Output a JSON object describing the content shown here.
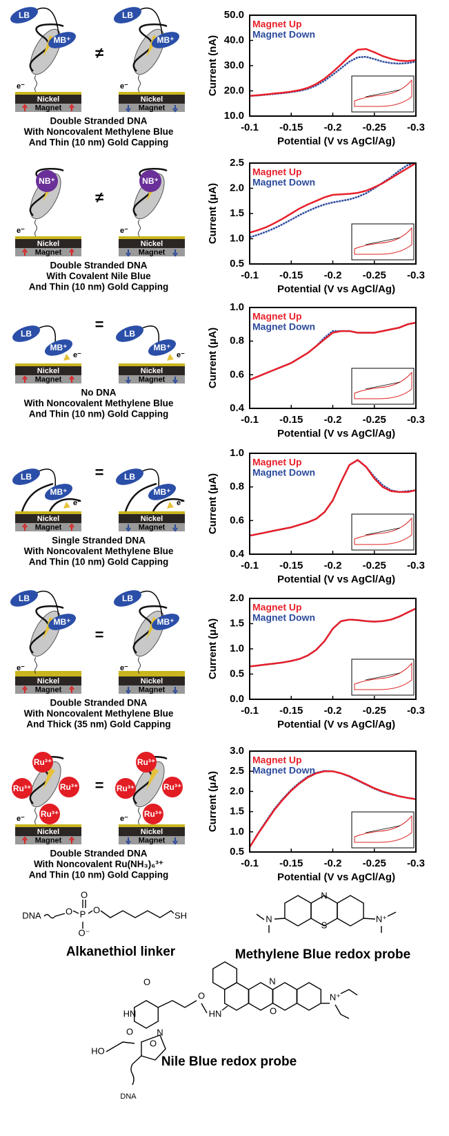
{
  "chart_data": [
    {
      "type": "line",
      "y_label": "Current (nA)",
      "x_label": "Potential (V vs AgCl/Ag)",
      "x": [
        -0.1,
        -0.11,
        -0.12,
        -0.13,
        -0.14,
        -0.15,
        -0.16,
        -0.17,
        -0.18,
        -0.19,
        -0.2,
        -0.21,
        -0.22,
        -0.23,
        -0.24,
        -0.25,
        -0.26,
        -0.27,
        -0.28,
        -0.29,
        -0.3
      ],
      "xlim": [
        -0.1,
        -0.3
      ],
      "xticks": [
        -0.1,
        -0.15,
        -0.2,
        -0.25,
        -0.3
      ],
      "ylim": [
        10,
        50
      ],
      "yticks": [
        {
          "value": 10,
          "label": "10.0"
        },
        {
          "value": 20,
          "label": "20.0"
        },
        {
          "value": 30,
          "label": "30.0"
        },
        {
          "value": 40,
          "label": "40.0"
        },
        {
          "value": 50,
          "label": "50.0"
        }
      ],
      "legend": "upper left",
      "series": [
        {
          "name": "Magnet Up",
          "color": "#e8202a",
          "values": [
            18,
            18.3,
            18.6,
            19,
            19.3,
            19.7,
            20.3,
            21.2,
            22.7,
            24.8,
            27.5,
            30.5,
            33.7,
            36.3,
            36.6,
            35.3,
            33.8,
            32.7,
            32,
            31.8,
            32.2
          ]
        },
        {
          "name": "Magnet Down",
          "color": "#2b4a9c",
          "values": [
            18,
            18.2,
            18.5,
            18.8,
            19.1,
            19.5,
            20,
            20.8,
            22.1,
            24,
            26.4,
            29,
            31.6,
            33.3,
            33.5,
            32.6,
            31.6,
            31,
            30.8,
            31,
            31.6
          ]
        }
      ]
    },
    {
      "type": "line",
      "y_label": "Current (μA)",
      "x_label": "Potential (V vs AgCl/Ag)",
      "x": [
        -0.1,
        -0.11,
        -0.12,
        -0.13,
        -0.14,
        -0.15,
        -0.16,
        -0.17,
        -0.18,
        -0.19,
        -0.2,
        -0.21,
        -0.22,
        -0.23,
        -0.24,
        -0.25,
        -0.26,
        -0.27,
        -0.28,
        -0.29,
        -0.3
      ],
      "xlim": [
        -0.1,
        -0.3
      ],
      "xticks": [
        -0.1,
        -0.15,
        -0.2,
        -0.25,
        -0.3
      ],
      "ylim": [
        0.5,
        2.5
      ],
      "yticks": [
        0.5,
        {
          "value": 1,
          "label": "1.0"
        },
        1.5,
        {
          "value": 2,
          "label": "2.0"
        },
        2.5
      ],
      "legend": "upper left",
      "series": [
        {
          "name": "Magnet Up",
          "color": "#e8202a",
          "values": [
            1.12,
            1.17,
            1.23,
            1.31,
            1.4,
            1.5,
            1.6,
            1.68,
            1.75,
            1.82,
            1.87,
            1.88,
            1.89,
            1.91,
            1.95,
            2.02,
            2.1,
            2.2,
            2.3,
            2.4,
            2.5
          ]
        },
        {
          "name": "Magnet Down",
          "color": "#2b4a9c",
          "values": [
            1.03,
            1.08,
            1.14,
            1.21,
            1.29,
            1.38,
            1.47,
            1.55,
            1.62,
            1.68,
            1.72,
            1.75,
            1.78,
            1.83,
            1.9,
            2,
            2.11,
            2.22,
            2.35,
            2.46,
            2.5
          ]
        }
      ]
    },
    {
      "type": "line",
      "y_label": "Current (μA)",
      "x_label": "Potential (V vs AgCl/Ag)",
      "x": [
        -0.1,
        -0.11,
        -0.12,
        -0.13,
        -0.14,
        -0.15,
        -0.16,
        -0.17,
        -0.18,
        -0.19,
        -0.2,
        -0.21,
        -0.22,
        -0.23,
        -0.24,
        -0.25,
        -0.26,
        -0.27,
        -0.28,
        -0.29,
        -0.3
      ],
      "xlim": [
        -0.1,
        -0.3
      ],
      "xticks": [
        -0.1,
        -0.15,
        -0.2,
        -0.25,
        -0.3
      ],
      "ylim": [
        0.4,
        1
      ],
      "yticks": [
        0.4,
        0.6,
        0.8,
        {
          "value": 1,
          "label": "1.0"
        }
      ],
      "legend": "upper left",
      "series": [
        {
          "name": "Magnet Up",
          "color": "#e8202a",
          "values": [
            0.57,
            0.59,
            0.61,
            0.63,
            0.65,
            0.67,
            0.7,
            0.73,
            0.77,
            0.81,
            0.85,
            0.86,
            0.86,
            0.85,
            0.85,
            0.85,
            0.86,
            0.87,
            0.88,
            0.9,
            0.91
          ]
        },
        {
          "name": "Magnet Down",
          "color": "#2b4a9c",
          "values": [
            0.57,
            0.59,
            0.61,
            0.63,
            0.65,
            0.67,
            0.7,
            0.73,
            0.77,
            0.82,
            0.86,
            0.86,
            0.86,
            0.85,
            0.85,
            0.85,
            0.86,
            0.87,
            0.88,
            0.9,
            0.91
          ]
        }
      ]
    },
    {
      "type": "line",
      "y_label": "Current (μA)",
      "x_label": "Potential (V vs AgCl/Ag)",
      "x": [
        -0.1,
        -0.11,
        -0.12,
        -0.13,
        -0.14,
        -0.15,
        -0.16,
        -0.17,
        -0.18,
        -0.19,
        -0.2,
        -0.21,
        -0.22,
        -0.23,
        -0.24,
        -0.25,
        -0.26,
        -0.27,
        -0.28,
        -0.29,
        -0.3
      ],
      "xlim": [
        -0.1,
        -0.3
      ],
      "xticks": [
        -0.1,
        -0.15,
        -0.2,
        -0.25,
        -0.3
      ],
      "ylim": [
        0.4,
        1
      ],
      "yticks": [
        0.4,
        0.6,
        0.8,
        {
          "value": 1,
          "label": "1.0"
        }
      ],
      "legend": "upper left",
      "series": [
        {
          "name": "Magnet Up",
          "color": "#e8202a",
          "values": [
            0.51,
            0.52,
            0.53,
            0.54,
            0.55,
            0.56,
            0.575,
            0.59,
            0.61,
            0.65,
            0.72,
            0.83,
            0.93,
            0.96,
            0.92,
            0.85,
            0.8,
            0.775,
            0.77,
            0.77,
            0.78
          ]
        },
        {
          "name": "Magnet Down",
          "color": "#2b4a9c",
          "values": [
            0.51,
            0.52,
            0.53,
            0.54,
            0.55,
            0.56,
            0.575,
            0.59,
            0.61,
            0.65,
            0.72,
            0.83,
            0.93,
            0.96,
            0.92,
            0.86,
            0.81,
            0.78,
            0.77,
            0.775,
            0.78
          ]
        }
      ]
    },
    {
      "type": "line",
      "y_label": "Current (μA)",
      "x_label": "Potential (V vs AgCl/Ag)",
      "x": [
        -0.1,
        -0.11,
        -0.12,
        -0.13,
        -0.14,
        -0.15,
        -0.16,
        -0.17,
        -0.18,
        -0.19,
        -0.2,
        -0.21,
        -0.22,
        -0.23,
        -0.24,
        -0.25,
        -0.26,
        -0.27,
        -0.28,
        -0.29,
        -0.3
      ],
      "xlim": [
        -0.1,
        -0.3
      ],
      "xticks": [
        -0.1,
        -0.15,
        -0.2,
        -0.25,
        -0.3
      ],
      "ylim": [
        0,
        2
      ],
      "yticks": [
        {
          "value": 0,
          "label": "0.0"
        },
        0.5,
        {
          "value": 1,
          "label": "1.0"
        },
        1.5,
        {
          "value": 2,
          "label": "2.0"
        }
      ],
      "legend": "upper left",
      "series": [
        {
          "name": "Magnet Up",
          "color": "#e8202a",
          "values": [
            0.65,
            0.67,
            0.69,
            0.71,
            0.73,
            0.76,
            0.8,
            0.87,
            0.98,
            1.15,
            1.4,
            1.55,
            1.58,
            1.57,
            1.55,
            1.54,
            1.55,
            1.58,
            1.64,
            1.72,
            1.8
          ]
        },
        {
          "name": "Magnet Down",
          "color": "#2b4a9c",
          "values": [
            0.65,
            0.67,
            0.69,
            0.71,
            0.73,
            0.76,
            0.8,
            0.87,
            0.98,
            1.15,
            1.4,
            1.55,
            1.58,
            1.57,
            1.55,
            1.54,
            1.55,
            1.58,
            1.64,
            1.72,
            1.8
          ]
        }
      ]
    },
    {
      "type": "line",
      "y_label": "Current (μA)",
      "x_label": "Potential (V vs AgCl/Ag)",
      "x": [
        -0.1,
        -0.11,
        -0.12,
        -0.13,
        -0.14,
        -0.15,
        -0.16,
        -0.17,
        -0.18,
        -0.19,
        -0.2,
        -0.21,
        -0.22,
        -0.23,
        -0.24,
        -0.25,
        -0.26,
        -0.27,
        -0.28,
        -0.29,
        -0.3
      ],
      "xlim": [
        -0.1,
        -0.3
      ],
      "xticks": [
        -0.1,
        -0.15,
        -0.2,
        -0.25,
        -0.3
      ],
      "ylim": [
        0.5,
        3
      ],
      "yticks": [
        0.5,
        {
          "value": 1,
          "label": "1.0"
        },
        1.5,
        {
          "value": 2,
          "label": "2.0"
        },
        2.5,
        {
          "value": 3,
          "label": "3.0"
        }
      ],
      "legend": "upper left",
      "series": [
        {
          "name": "Magnet Up",
          "color": "#e8202a",
          "values": [
            0.62,
            0.95,
            1.25,
            1.55,
            1.8,
            2.02,
            2.2,
            2.35,
            2.45,
            2.5,
            2.5,
            2.45,
            2.38,
            2.28,
            2.18,
            2.08,
            2,
            1.94,
            1.88,
            1.84,
            1.81
          ]
        },
        {
          "name": "Magnet Down",
          "color": "#2b4a9c",
          "values": [
            0.62,
            0.96,
            1.27,
            1.57,
            1.82,
            2.04,
            2.22,
            2.37,
            2.46,
            2.51,
            2.5,
            2.45,
            2.37,
            2.27,
            2.17,
            2.07,
            1.99,
            1.93,
            1.88,
            1.84,
            1.81
          ]
        }
      ]
    }
  ],
  "substrate": {
    "layer": "Nickel",
    "base": "Magnet",
    "electron": "e⁻"
  },
  "panels": [
    {
      "relation": "≠",
      "probes": [
        "LB",
        "MB⁺"
      ],
      "captions": [
        "Double Stranded DNA",
        "With Noncovalent Methylene Blue",
        "And Thin (10 nm) Gold Capping"
      ]
    },
    {
      "relation": "≠",
      "probes": [
        "NB⁺"
      ],
      "captions": [
        "Double Stranded DNA",
        "With Covalent Nile Blue",
        "And Thin (10 nm) Gold Capping"
      ]
    },
    {
      "relation": "=",
      "probes": [
        "LB",
        "MB⁺"
      ],
      "captions": [
        "No DNA",
        "With Noncovalent Methylene Blue",
        "And Thin (10 nm) Gold Capping"
      ]
    },
    {
      "relation": "=",
      "probes": [
        "LB",
        "MB⁺"
      ],
      "captions": [
        "Single Stranded DNA",
        "With Noncovalent Methylene Blue",
        "And Thin (10 nm) Gold Capping"
      ]
    },
    {
      "relation": "=",
      "probes": [
        "LB",
        "MB⁺"
      ],
      "captions": [
        "Double Stranded DNA",
        "With Noncovalent Methylene Blue",
        "And Thick (35 nm) Gold Capping"
      ]
    },
    {
      "relation": "=",
      "probes": [
        "Ru³⁺",
        "Ru³⁺",
        "Ru³⁺",
        "Ru³⁺"
      ],
      "captions": [
        "Double Stranded DNA",
        "With Noncovalent Ru(NH₃)₆³⁺",
        "And Thin (10 nm) Gold Capping"
      ]
    }
  ],
  "structures": {
    "linker": {
      "name": "Alkanethiol linker",
      "atoms": [
        "DNA",
        "O",
        "P",
        "O",
        "O⁻",
        "O",
        "SH"
      ]
    },
    "methylene_blue": {
      "name": "Methylene Blue redox probe",
      "atoms": [
        "N",
        "S",
        "N",
        "N⁺"
      ]
    },
    "nile_blue": {
      "name": "Nile Blue redox probe",
      "atoms": [
        "O",
        "HN",
        "O",
        "N",
        "O",
        "HN",
        "N",
        "O",
        "N⁺",
        "HO",
        "O",
        "DNA"
      ]
    }
  }
}
